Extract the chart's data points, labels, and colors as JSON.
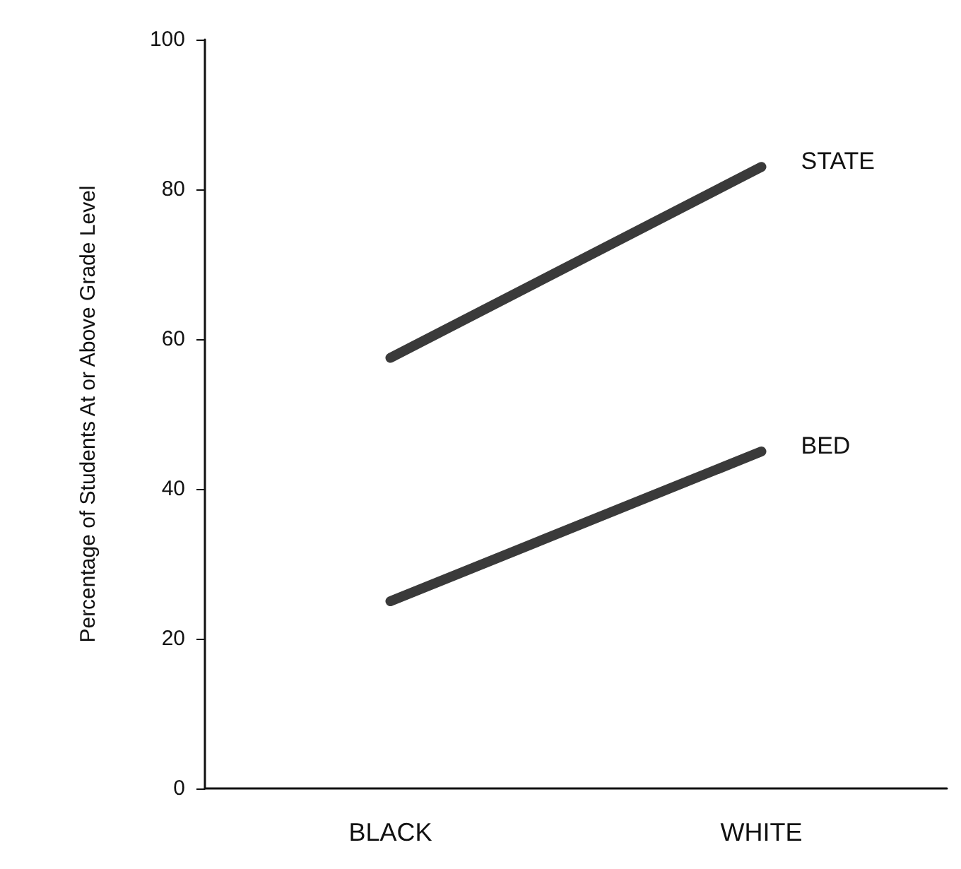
{
  "chart_data": {
    "type": "line",
    "ylabel": "Percentage of Students At or Above Grade Level",
    "categories": [
      "BLACK",
      "WHITE"
    ],
    "series": [
      {
        "name": "STATE",
        "color": "#3a3a3a",
        "values": [
          57.5,
          83
        ]
      },
      {
        "name": "BED",
        "color": "#3a3a3a",
        "values": [
          25,
          45
        ]
      }
    ],
    "ylim": [
      0,
      100
    ],
    "yticks": [
      0,
      20,
      40,
      60,
      80,
      100
    ],
    "grid": false,
    "legend": false,
    "line_style": "solid"
  }
}
